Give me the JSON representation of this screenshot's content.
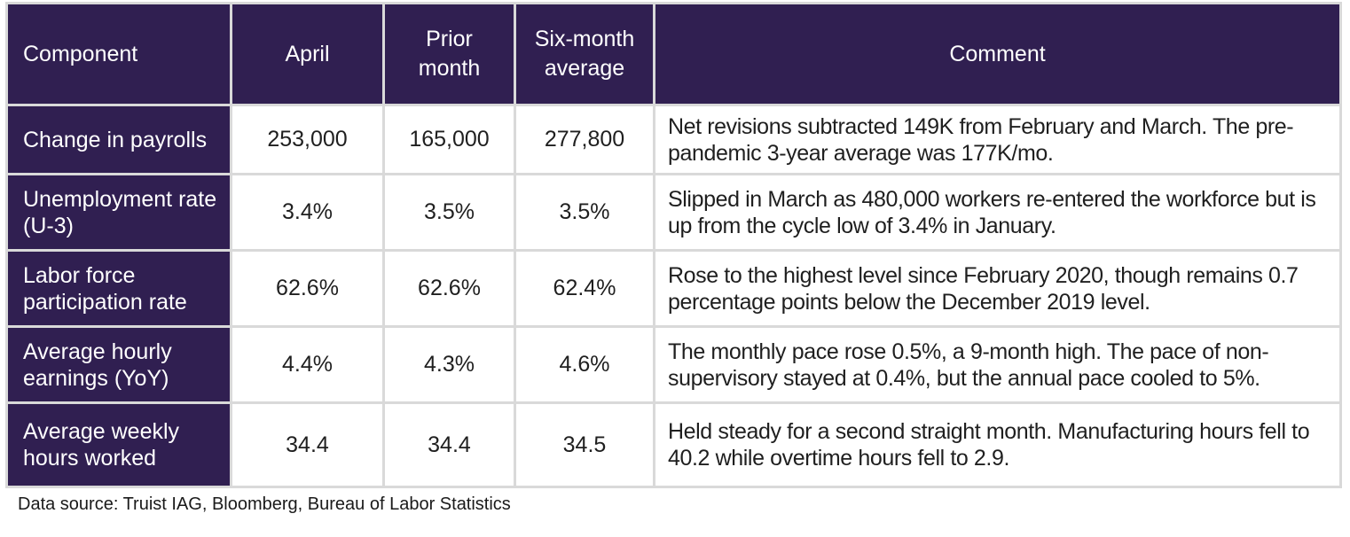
{
  "chart_data": {
    "type": "table",
    "columns": [
      "Component",
      "April",
      "Prior month",
      "Six-month average",
      "Comment"
    ],
    "rows": [
      {
        "component": "Change in payrolls",
        "april": "253,000",
        "prior_month": "165,000",
        "six_month_average": "277,800",
        "comment": "Net revisions subtracted 149K from February and March. The pre-pandemic 3-year average was 177K/mo."
      },
      {
        "component": "Unemployment rate (U-3)",
        "april": "3.4%",
        "prior_month": "3.5%",
        "six_month_average": "3.5%",
        "comment": "Slipped in March as 480,000 workers re-entered the workforce but is up from the cycle low of 3.4% in January."
      },
      {
        "component": "Labor force participation rate",
        "april": "62.6%",
        "prior_month": "62.6%",
        "six_month_average": "62.4%",
        "comment": "Rose to the highest level since February 2020, though remains 0.7 percentage points below the December 2019 level."
      },
      {
        "component": "Average hourly earnings (YoY)",
        "april": "4.4%",
        "prior_month": "4.3%",
        "six_month_average": "4.6%",
        "comment": "The monthly pace rose 0.5%, a 9-month high. The pace of non-supervisory stayed at 0.4%, but the annual pace cooled to 5%."
      },
      {
        "component": "Average weekly hours worked",
        "april": "34.4",
        "prior_month": "34.4",
        "six_month_average": "34.5",
        "comment": "Held steady for a second straight month. Manufacturing hours fell to 40.2 while overtime hours fell to 2.9."
      }
    ]
  },
  "source_note": "Data source: Truist IAG, Bloomberg, Bureau of Labor Statistics",
  "colors": {
    "header_background": "#301f51",
    "header_text": "#ffffff",
    "grid_border": "#d9d9d9",
    "body_text": "#1f1f1f"
  }
}
